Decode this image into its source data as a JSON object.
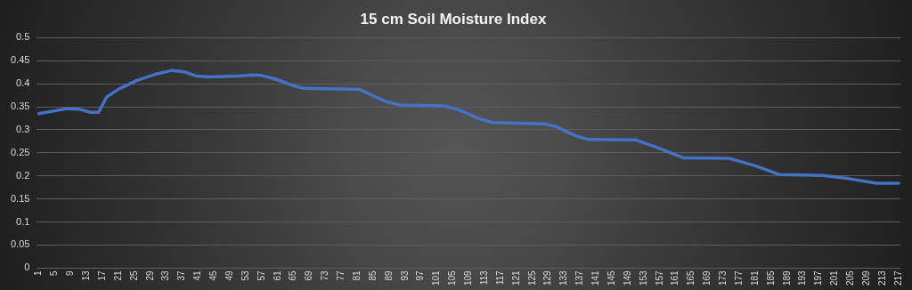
{
  "chart_data": {
    "type": "line",
    "title": "15 cm Soil Moisture Index",
    "x": [
      1,
      8,
      11,
      14,
      16,
      18,
      21,
      25.5,
      30,
      34.5,
      37.5,
      40.5,
      43.5,
      51,
      54.5,
      57,
      60.5,
      64.5,
      67.5,
      81.5,
      88,
      91.5,
      102.5,
      106,
      112,
      115,
      128,
      131,
      135.5,
      139,
      151,
      156.5,
      163,
      174.5,
      181,
      187,
      198,
      204.5,
      211.5,
      217
    ],
    "series": [
      {
        "color": "#4472c4",
        "values": [
          0.335,
          0.346,
          0.345,
          0.338,
          0.338,
          0.371,
          0.388,
          0.407,
          0.42,
          0.429,
          0.426,
          0.417,
          0.415,
          0.417,
          0.419,
          0.418,
          0.41,
          0.397,
          0.39,
          0.388,
          0.362,
          0.354,
          0.352,
          0.345,
          0.323,
          0.316,
          0.313,
          0.307,
          0.288,
          0.279,
          0.278,
          0.261,
          0.239,
          0.238,
          0.222,
          0.203,
          0.201,
          0.194,
          0.184,
          0.184
        ]
      }
    ],
    "xlim": [
      0.5,
      217.5
    ],
    "xticks": [
      1,
      5,
      9,
      13,
      17,
      21,
      25,
      29,
      33,
      37,
      41,
      45,
      49,
      53,
      57,
      61,
      65,
      69,
      73,
      77,
      81,
      85,
      89,
      93,
      97,
      101,
      105,
      109,
      113,
      117,
      121,
      125,
      129,
      133,
      137,
      141,
      145,
      149,
      153,
      157,
      161,
      165,
      169,
      173,
      177,
      181,
      185,
      189,
      193,
      197,
      201,
      205,
      209,
      213,
      217
    ],
    "ylim": [
      0,
      0.5
    ],
    "yticks": [
      0,
      0.05,
      0.1,
      0.15,
      0.2,
      0.25,
      0.3,
      0.35,
      0.4,
      0.45,
      0.5
    ],
    "grid": "y",
    "legend": false,
    "marker": "none",
    "line_style": "solid"
  }
}
